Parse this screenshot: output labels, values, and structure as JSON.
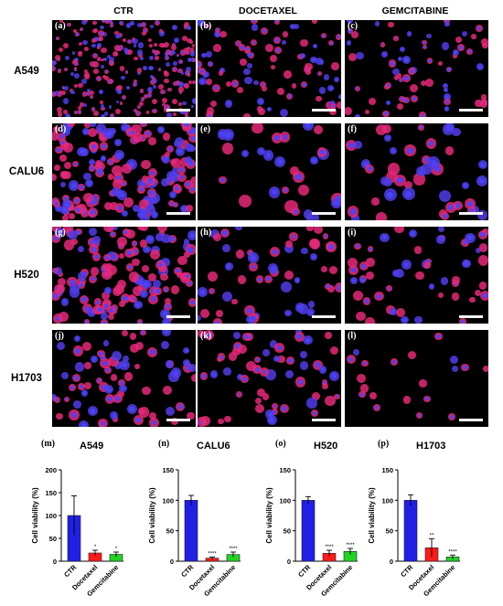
{
  "columns": [
    "CTR",
    "DOCETAXEL",
    "GEMCITABINE"
  ],
  "rows": [
    "A549",
    "CALU6",
    "H520",
    "H1703"
  ],
  "panel_labels": [
    "(a)",
    "(b)",
    "(c)",
    "(d)",
    "(e)",
    "(f)",
    "(g)",
    "(h)",
    "(i)",
    "(j)",
    "(k)",
    "(l)"
  ],
  "colors": {
    "ctr": "#1f1fe6",
    "docetaxel": "#ff1a1a",
    "gemcitabine": "#21d321",
    "cell": "#e0207a",
    "nucleus": "#3a3aff"
  },
  "chart_data": [
    {
      "type": "bar",
      "label": "(m)",
      "title": "A549",
      "ylabel": "Cell viability (%)",
      "ylim": [
        0,
        200
      ],
      "yticks": [
        0,
        50,
        100,
        150,
        200
      ],
      "categories": [
        "CTR",
        "Docetaxel",
        "Gemcitabine"
      ],
      "values": [
        100,
        18,
        15
      ],
      "errors": [
        43,
        6,
        5
      ],
      "significance": [
        "",
        "*",
        "*"
      ]
    },
    {
      "type": "bar",
      "label": "(n)",
      "title": "CALU6",
      "ylabel": "Cell viability (%)",
      "ylim": [
        0,
        150
      ],
      "yticks": [
        0,
        50,
        100,
        150
      ],
      "categories": [
        "CTR",
        "Docetaxel",
        "Gemcitabine"
      ],
      "values": [
        100,
        5,
        11
      ],
      "errors": [
        8,
        2,
        4
      ],
      "significance": [
        "",
        "****",
        "****"
      ]
    },
    {
      "type": "bar",
      "label": "(o)",
      "title": "H520",
      "ylabel": "Cell viability (%)",
      "ylim": [
        0,
        150
      ],
      "yticks": [
        0,
        50,
        100,
        150
      ],
      "categories": [
        "CTR",
        "Docetaxel",
        "Gemcitabine"
      ],
      "values": [
        100,
        13,
        16
      ],
      "errors": [
        6,
        5,
        5
      ],
      "significance": [
        "",
        "****",
        "****"
      ]
    },
    {
      "type": "bar",
      "label": "(p)",
      "title": "H1703",
      "ylabel": "Cell viability (%)",
      "ylim": [
        0,
        150
      ],
      "yticks": [
        0,
        50,
        100,
        150
      ],
      "categories": [
        "CTR",
        "Docetaxel",
        "Gemcitabine"
      ],
      "values": [
        100,
        22,
        7
      ],
      "errors": [
        9,
        15,
        3
      ],
      "significance": [
        "",
        "**",
        "****"
      ]
    }
  ]
}
